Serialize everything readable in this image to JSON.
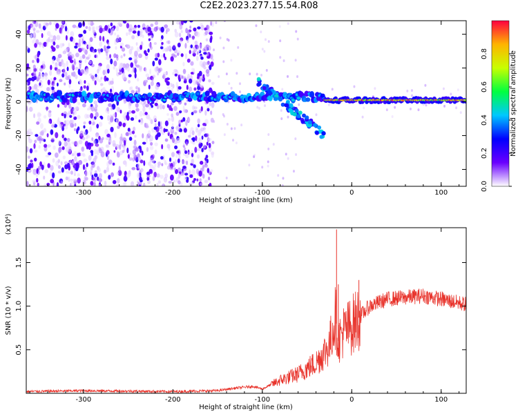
{
  "title": "C2E2.2023.277.15.54.R08",
  "chart_data": [
    {
      "type": "heatmap",
      "xlabel": "Height of straight line (km)",
      "ylabel": "Frequency (Hz)",
      "xlim": [
        -364,
        128
      ],
      "ylim": [
        -50,
        48
      ],
      "xticks": [
        "-300",
        "-200",
        "-100",
        "0",
        "100"
      ],
      "xtick_values": [
        -300,
        -200,
        -100,
        0,
        100
      ],
      "yticks": [
        "-40",
        "-20",
        "0",
        "20",
        "40"
      ],
      "ytick_values": [
        -40,
        -20,
        0,
        20,
        40
      ],
      "colorbar": {
        "label": "Normalized spectral amplitude",
        "range": [
          0,
          1
        ],
        "ticks": [
          "0.0",
          "0.2",
          "0.4",
          "0.6",
          "0.8"
        ],
        "tick_values": [
          0.0,
          0.2,
          0.4,
          0.6,
          0.8
        ],
        "colormap": [
          "#ffffff",
          "#6a00ff",
          "#0000ff",
          "#00c8ff",
          "#00ff40",
          "#c8ff00",
          "#ffb400",
          "#ff0040"
        ]
      },
      "features": {
        "main_band": {
          "x": [
            -364,
            128
          ],
          "frequency": [
            1,
            4
          ],
          "amplitude": 0.45
        },
        "diverging_branch": {
          "x": [
            -105,
            -30
          ],
          "frequency_start": 12,
          "frequency_end": -20,
          "amplitude": 0.4
        },
        "stable_tone": {
          "x": [
            -30,
            128
          ],
          "frequency": 1,
          "amplitude": 0.95
        },
        "noise_region": {
          "x": [
            -364,
            -155
          ],
          "frequency": [
            -50,
            48
          ],
          "amplitude": 0.15
        }
      }
    },
    {
      "type": "line",
      "xlabel": "Height of straight line (km)",
      "ylabel": "SNR (10 * v/v)",
      "yscale_note": "(x10⁴)",
      "xlim": [
        -364,
        128
      ],
      "ylim": [
        0,
        1.9
      ],
      "xticks": [
        "-300",
        "-200",
        "-100",
        "0",
        "100"
      ],
      "xtick_values": [
        -300,
        -200,
        -100,
        0,
        100
      ],
      "yticks": [
        "0.5",
        "1.0",
        "1.5"
      ],
      "ytick_values": [
        0.5,
        1.0,
        1.5
      ],
      "series_color": "#e8332b",
      "x": [
        -364,
        -300,
        -250,
        -200,
        -150,
        -130,
        -110,
        -100,
        -80,
        -60,
        -40,
        -25,
        -18,
        -15,
        -10,
        0,
        20,
        40,
        60,
        80,
        100,
        128
      ],
      "y": [
        0.02,
        0.03,
        0.025,
        0.02,
        0.03,
        0.06,
        0.08,
        0.05,
        0.15,
        0.22,
        0.35,
        0.55,
        0.9,
        0.6,
        0.7,
        0.78,
        1.0,
        1.08,
        1.1,
        1.12,
        1.08,
        1.02
      ],
      "spikes": [
        {
          "x": -17,
          "y": 1.88
        },
        {
          "x": -15,
          "y": 1.25
        },
        {
          "x": 8,
          "y": 1.3
        }
      ]
    }
  ]
}
